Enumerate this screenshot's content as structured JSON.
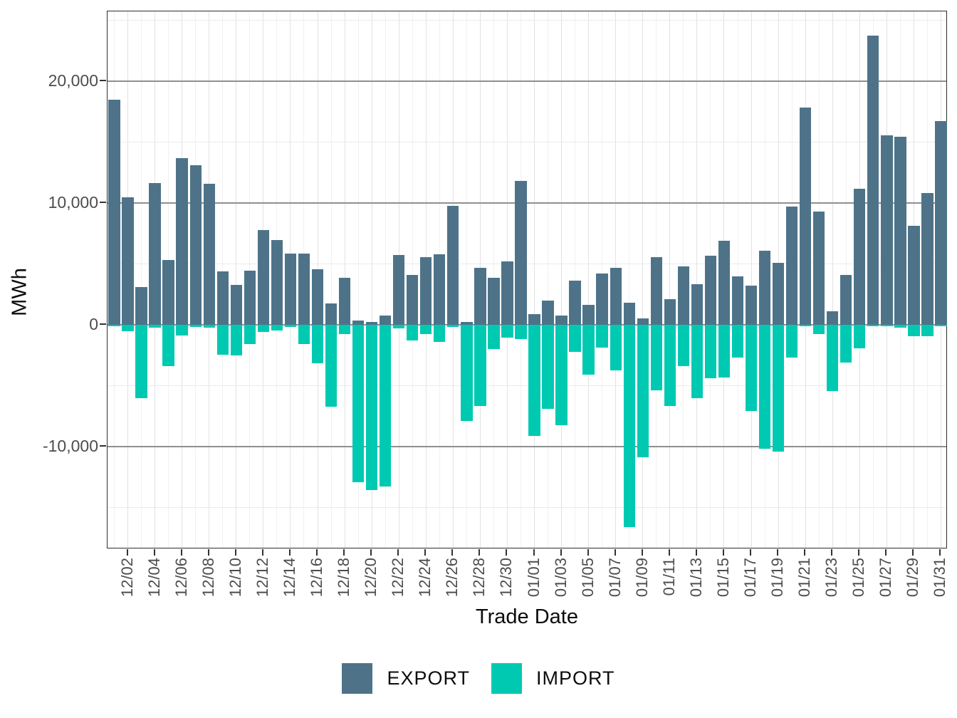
{
  "chart_data": {
    "type": "bar",
    "title": "",
    "xlabel": "Trade Date",
    "ylabel": "MWh",
    "legend_position": "bottom-center",
    "grid": true,
    "ylim": [
      -18450,
      25730
    ],
    "categories": [
      "12/01",
      "12/02",
      "12/03",
      "12/04",
      "12/05",
      "12/06",
      "12/07",
      "12/08",
      "12/09",
      "12/10",
      "12/11",
      "12/12",
      "12/13",
      "12/14",
      "12/15",
      "12/16",
      "12/17",
      "12/18",
      "12/19",
      "12/20",
      "12/21",
      "12/22",
      "12/23",
      "12/24",
      "12/25",
      "12/26",
      "12/27",
      "12/28",
      "12/29",
      "12/30",
      "12/31",
      "01/01",
      "01/02",
      "01/03",
      "01/04",
      "01/05",
      "01/06",
      "01/07",
      "01/08",
      "01/09",
      "01/10",
      "01/11",
      "01/12",
      "01/13",
      "01/14",
      "01/15",
      "01/16",
      "01/17",
      "01/18",
      "01/19",
      "01/20",
      "01/21",
      "01/22",
      "01/23",
      "01/24",
      "01/25",
      "01/26",
      "01/27",
      "01/28",
      "01/29",
      "01/30",
      "01/31"
    ],
    "series": [
      {
        "name": "EXPORT",
        "color": "#4e7389",
        "values": [
          18500,
          10450,
          3100,
          11650,
          5350,
          13700,
          13100,
          11600,
          4400,
          3250,
          4450,
          7750,
          6970,
          5860,
          5860,
          4570,
          1760,
          3870,
          350,
          250,
          760,
          5740,
          4100,
          5570,
          5800,
          9790,
          230,
          4690,
          3870,
          5220,
          11840,
          880,
          1990,
          760,
          3630,
          1640,
          4200,
          4690,
          1820,
          530,
          5570,
          2110,
          4800,
          3320,
          5700,
          6920,
          3990,
          3230,
          6080,
          5080,
          9680,
          17840,
          9320,
          1100,
          4100,
          11190,
          23770,
          15570,
          15430,
          8140,
          10840,
          16700
        ]
      },
      {
        "name": "IMPORT",
        "color": "#00c9b2",
        "values": [
          -100,
          -550,
          -6000,
          -250,
          -3400,
          -880,
          -150,
          -250,
          -2450,
          -2500,
          -1550,
          -600,
          -470,
          -150,
          -1580,
          -3160,
          -6740,
          -760,
          -12900,
          -13550,
          -13250,
          -290,
          -1290,
          -760,
          -1400,
          -180,
          -7900,
          -6680,
          -2000,
          -1050,
          -1150,
          -9100,
          -6920,
          -8260,
          -2230,
          -4100,
          -1880,
          -3750,
          -16580,
          -10900,
          -5360,
          -6650,
          -3400,
          -6010,
          -4380,
          -4340,
          -2710,
          -7060,
          -10200,
          -10400,
          -2670,
          -100,
          -780,
          -5430,
          -3090,
          -1950,
          -100,
          -100,
          -250,
          -940,
          -940,
          -120
        ]
      }
    ],
    "y_ticks": [
      {
        "value": 20000,
        "label": "20,000"
      },
      {
        "value": 10000,
        "label": "10,000"
      },
      {
        "value": 0,
        "label": "0"
      },
      {
        "value": -10000,
        "label": "-10,000"
      }
    ],
    "y_minor_gridlines": [
      25000,
      15000,
      5000,
      -5000,
      -15000
    ],
    "x_tick_labels": [
      "12/02",
      "12/04",
      "12/06",
      "12/08",
      "12/10",
      "12/12",
      "12/14",
      "12/16",
      "12/18",
      "12/20",
      "12/22",
      "12/24",
      "12/26",
      "12/28",
      "12/30",
      "01/01",
      "01/03",
      "01/05",
      "01/07",
      "01/09",
      "01/11",
      "01/13",
      "01/15",
      "01/17",
      "01/19",
      "01/21",
      "01/23",
      "01/25",
      "01/27",
      "01/29",
      "01/31"
    ]
  },
  "axes": {
    "x_title": "Trade Date",
    "y_title": "MWh"
  },
  "legend": {
    "items": [
      {
        "label": "EXPORT",
        "color": "#4e7389"
      },
      {
        "label": "IMPORT",
        "color": "#00c9b2"
      }
    ]
  },
  "colors": {
    "export_bar": "#4e7389",
    "import_bar": "#00c9b2",
    "panel_border": "#2e2e2e",
    "major_gridline": "#8f8f8f",
    "minor_gridline": "#ebebeb",
    "vertical_major_gridline": "#e2e2e2",
    "vertical_minor_gridline": "#f1f1f1",
    "tick_label": "#4d4d4d",
    "tick_mark": "#333333",
    "background": "#ffffff"
  }
}
